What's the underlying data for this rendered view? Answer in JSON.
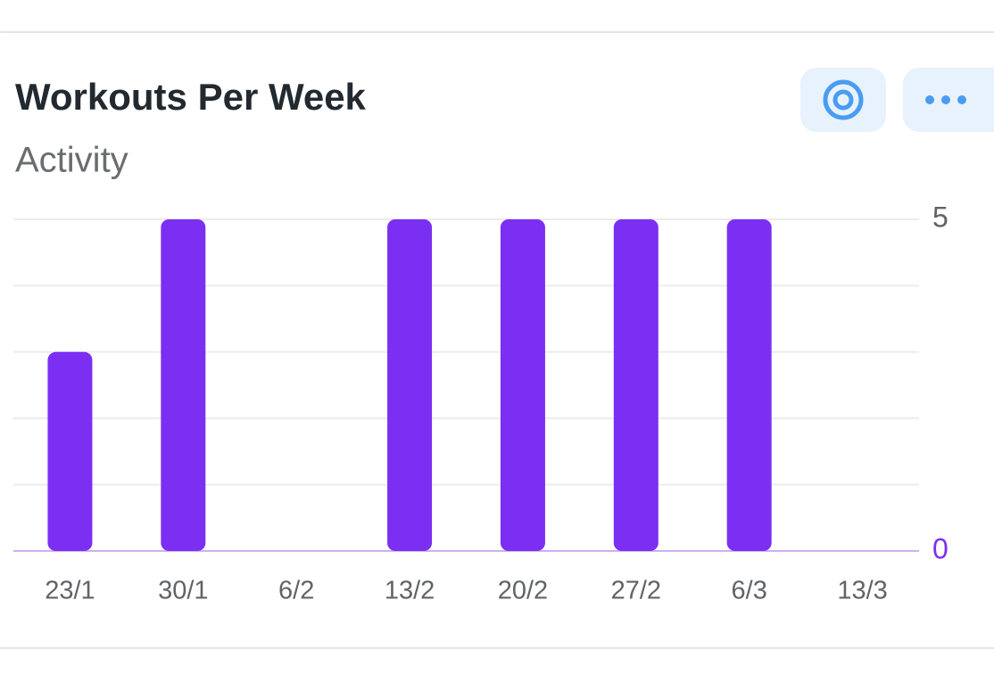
{
  "chart_data": {
    "type": "bar",
    "title": "Workouts Per Week",
    "subtitle": "Activity",
    "categories": [
      "23/1",
      "30/1",
      "6/2",
      "13/2",
      "20/2",
      "27/2",
      "6/3",
      "13/3"
    ],
    "values": [
      3,
      5,
      0,
      5,
      5,
      5,
      5,
      0
    ],
    "color": "#7b2ff2",
    "ylim": [
      0,
      5
    ],
    "yticks": [
      0,
      5
    ],
    "minor_yticks": [
      1,
      2,
      3,
      4
    ],
    "grid": true
  }
}
